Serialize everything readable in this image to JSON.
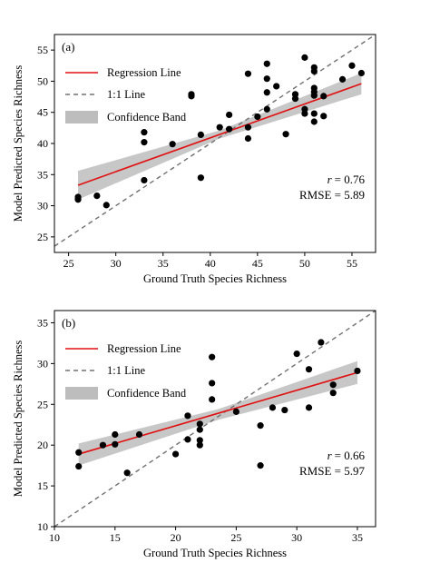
{
  "figure": {
    "background": "#ffffff"
  },
  "colors": {
    "point": "#000000",
    "regression": "#e01010",
    "identity": "#707070",
    "band": "#bdbdbd"
  },
  "chart_data": [
    {
      "type": "scatter",
      "panel_label": "(a)",
      "xlabel": "Ground Truth Species Richness",
      "ylabel": "Model Predicted Species Richness",
      "xlim": [
        23.5,
        57.5
      ],
      "ylim": [
        22.5,
        57.5
      ],
      "xticks": [
        25,
        30,
        35,
        40,
        45,
        50,
        55
      ],
      "yticks": [
        25,
        30,
        35,
        40,
        45,
        50,
        55
      ],
      "grid": false,
      "legend_position": "top-left",
      "legend": [
        {
          "key": "regression",
          "label": "Regression Line"
        },
        {
          "key": "identity",
          "label": "1:1 Line"
        },
        {
          "key": "band",
          "label": "Confidence Band"
        }
      ],
      "stats": {
        "r_label": "r",
        "r_value": "= 0.76",
        "rmse": "RMSE = 5.89"
      },
      "regression": {
        "x": [
          26,
          56
        ],
        "y": [
          33.3,
          49.6
        ]
      },
      "band": {
        "x": [
          26,
          41,
          56
        ],
        "upper": [
          35.6,
          42.1,
          51.3
        ],
        "lower": [
          31.0,
          40.8,
          47.9
        ]
      },
      "points": [
        {
          "x": 26,
          "y": 31.4
        },
        {
          "x": 26,
          "y": 31.0
        },
        {
          "x": 28,
          "y": 31.6
        },
        {
          "x": 29,
          "y": 30.1
        },
        {
          "x": 33,
          "y": 41.8
        },
        {
          "x": 33,
          "y": 40.2
        },
        {
          "x": 33,
          "y": 34.1
        },
        {
          "x": 36,
          "y": 39.9
        },
        {
          "x": 38,
          "y": 47.9
        },
        {
          "x": 38,
          "y": 47.6
        },
        {
          "x": 39,
          "y": 41.4
        },
        {
          "x": 39,
          "y": 34.5
        },
        {
          "x": 41,
          "y": 42.6
        },
        {
          "x": 42,
          "y": 44.6
        },
        {
          "x": 42,
          "y": 42.3
        },
        {
          "x": 44,
          "y": 51.2
        },
        {
          "x": 44,
          "y": 42.6
        },
        {
          "x": 44,
          "y": 40.8
        },
        {
          "x": 45,
          "y": 44.3
        },
        {
          "x": 46,
          "y": 52.8
        },
        {
          "x": 46,
          "y": 50.4
        },
        {
          "x": 46,
          "y": 48.2
        },
        {
          "x": 46,
          "y": 45.5
        },
        {
          "x": 47,
          "y": 49.2
        },
        {
          "x": 48,
          "y": 41.5
        },
        {
          "x": 49,
          "y": 47.9
        },
        {
          "x": 49,
          "y": 47.2
        },
        {
          "x": 50,
          "y": 53.8
        },
        {
          "x": 50,
          "y": 45.5
        },
        {
          "x": 50,
          "y": 44.8
        },
        {
          "x": 51,
          "y": 52.2
        },
        {
          "x": 51,
          "y": 51.6
        },
        {
          "x": 51,
          "y": 48.9
        },
        {
          "x": 51,
          "y": 48.3
        },
        {
          "x": 51,
          "y": 47.7
        },
        {
          "x": 51,
          "y": 44.8
        },
        {
          "x": 51,
          "y": 43.5
        },
        {
          "x": 52,
          "y": 47.6
        },
        {
          "x": 52,
          "y": 44.4
        },
        {
          "x": 54,
          "y": 50.3
        },
        {
          "x": 55,
          "y": 52.5
        },
        {
          "x": 56,
          "y": 51.3
        }
      ]
    },
    {
      "type": "scatter",
      "panel_label": "(b)",
      "xlabel": "Ground Truth Species Richness",
      "ylabel": "Model Predicted Species Richness",
      "xlim": [
        10,
        36.5
      ],
      "ylim": [
        10,
        36.5
      ],
      "xticks": [
        10,
        15,
        20,
        25,
        30,
        35
      ],
      "yticks": [
        10,
        15,
        20,
        25,
        30,
        35
      ],
      "grid": false,
      "legend_position": "top-left",
      "legend": [
        {
          "key": "regression",
          "label": "Regression Line"
        },
        {
          "key": "identity",
          "label": "1:1 Line"
        },
        {
          "key": "band",
          "label": "Confidence Band"
        }
      ],
      "stats": {
        "r_label": "r",
        "r_value": "= 0.66",
        "rmse": "RMSE = 5.97"
      },
      "regression": {
        "x": [
          12,
          35
        ],
        "y": [
          18.9,
          28.9
        ]
      },
      "band": {
        "x": [
          12,
          23.5,
          35
        ],
        "upper": [
          20.2,
          24.4,
          30.3
        ],
        "lower": [
          17.5,
          23.1,
          27.5
        ]
      },
      "points": [
        {
          "x": 12,
          "y": 19.1
        },
        {
          "x": 12,
          "y": 17.4
        },
        {
          "x": 14,
          "y": 20.0
        },
        {
          "x": 15,
          "y": 21.3
        },
        {
          "x": 15,
          "y": 20.1
        },
        {
          "x": 16,
          "y": 16.6
        },
        {
          "x": 17,
          "y": 21.3
        },
        {
          "x": 20,
          "y": 18.9
        },
        {
          "x": 21,
          "y": 23.6
        },
        {
          "x": 21,
          "y": 20.7
        },
        {
          "x": 22,
          "y": 22.6
        },
        {
          "x": 22,
          "y": 21.9
        },
        {
          "x": 22,
          "y": 20.6
        },
        {
          "x": 22,
          "y": 20.0
        },
        {
          "x": 23,
          "y": 30.8
        },
        {
          "x": 23,
          "y": 27.6
        },
        {
          "x": 23,
          "y": 25.6
        },
        {
          "x": 25,
          "y": 24.1
        },
        {
          "x": 27,
          "y": 22.4
        },
        {
          "x": 27,
          "y": 17.5
        },
        {
          "x": 28,
          "y": 24.6
        },
        {
          "x": 29,
          "y": 24.3
        },
        {
          "x": 30,
          "y": 31.2
        },
        {
          "x": 31,
          "y": 29.3
        },
        {
          "x": 31,
          "y": 24.6
        },
        {
          "x": 32,
          "y": 32.6
        },
        {
          "x": 33,
          "y": 27.4
        },
        {
          "x": 33,
          "y": 26.4
        },
        {
          "x": 35,
          "y": 29.1
        }
      ]
    }
  ]
}
